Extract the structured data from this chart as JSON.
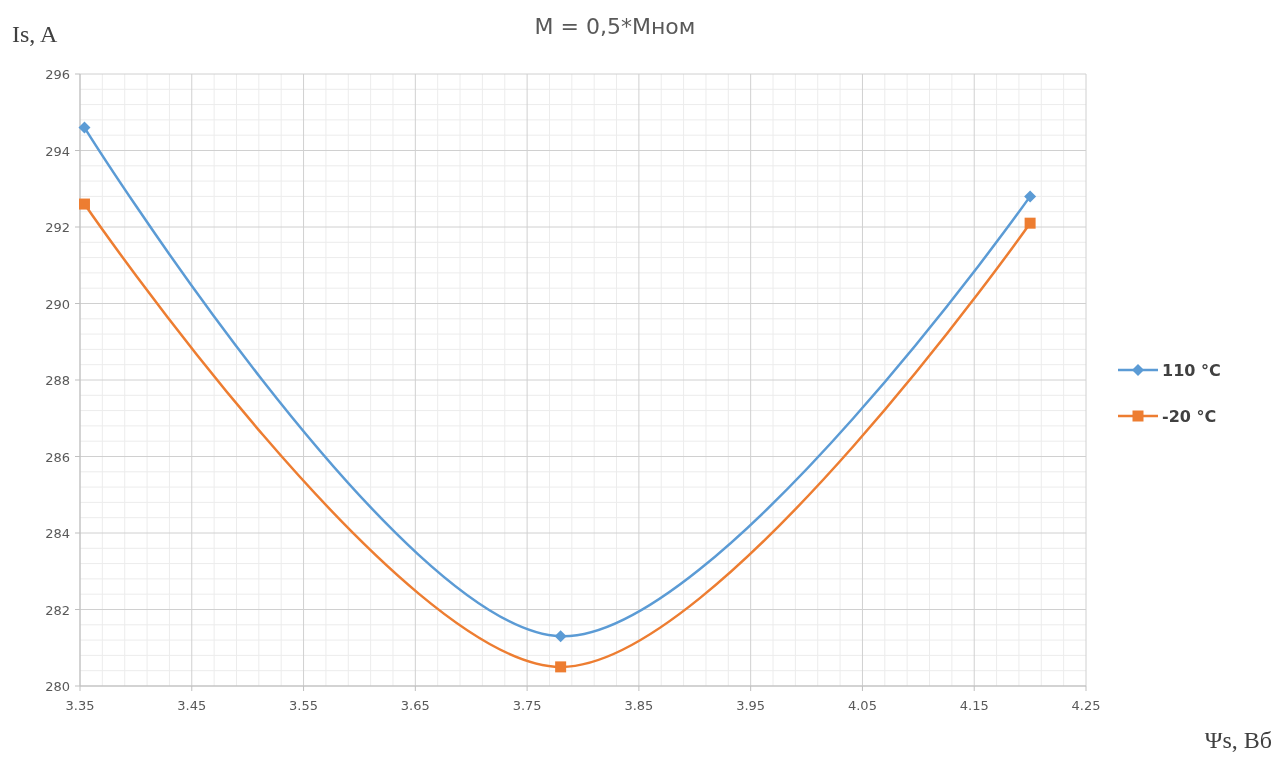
{
  "chart_data": {
    "type": "line",
    "title": "M = 0,5*Mном",
    "xlabel": "Ψs, Вб",
    "ylabel": "Is, A",
    "x": [
      3.354,
      3.78,
      4.2
    ],
    "series": [
      {
        "name": "110 °C",
        "color": "#5b9bd5",
        "marker": "diamond",
        "values": [
          294.6,
          281.3,
          292.8
        ]
      },
      {
        "name": "-20 °C",
        "color": "#ed7d31",
        "marker": "square",
        "values": [
          292.6,
          280.5,
          292.1
        ]
      }
    ],
    "xlim": [
      3.35,
      4.25
    ],
    "xticks": [
      3.35,
      3.45,
      3.55,
      3.65,
      3.75,
      3.85,
      3.95,
      4.05,
      4.15,
      4.25
    ],
    "ylim": [
      280,
      296
    ],
    "yticks": [
      280,
      282,
      284,
      286,
      288,
      290,
      292,
      294,
      296
    ],
    "grid": true,
    "legend": "right",
    "line_style": "solid"
  }
}
